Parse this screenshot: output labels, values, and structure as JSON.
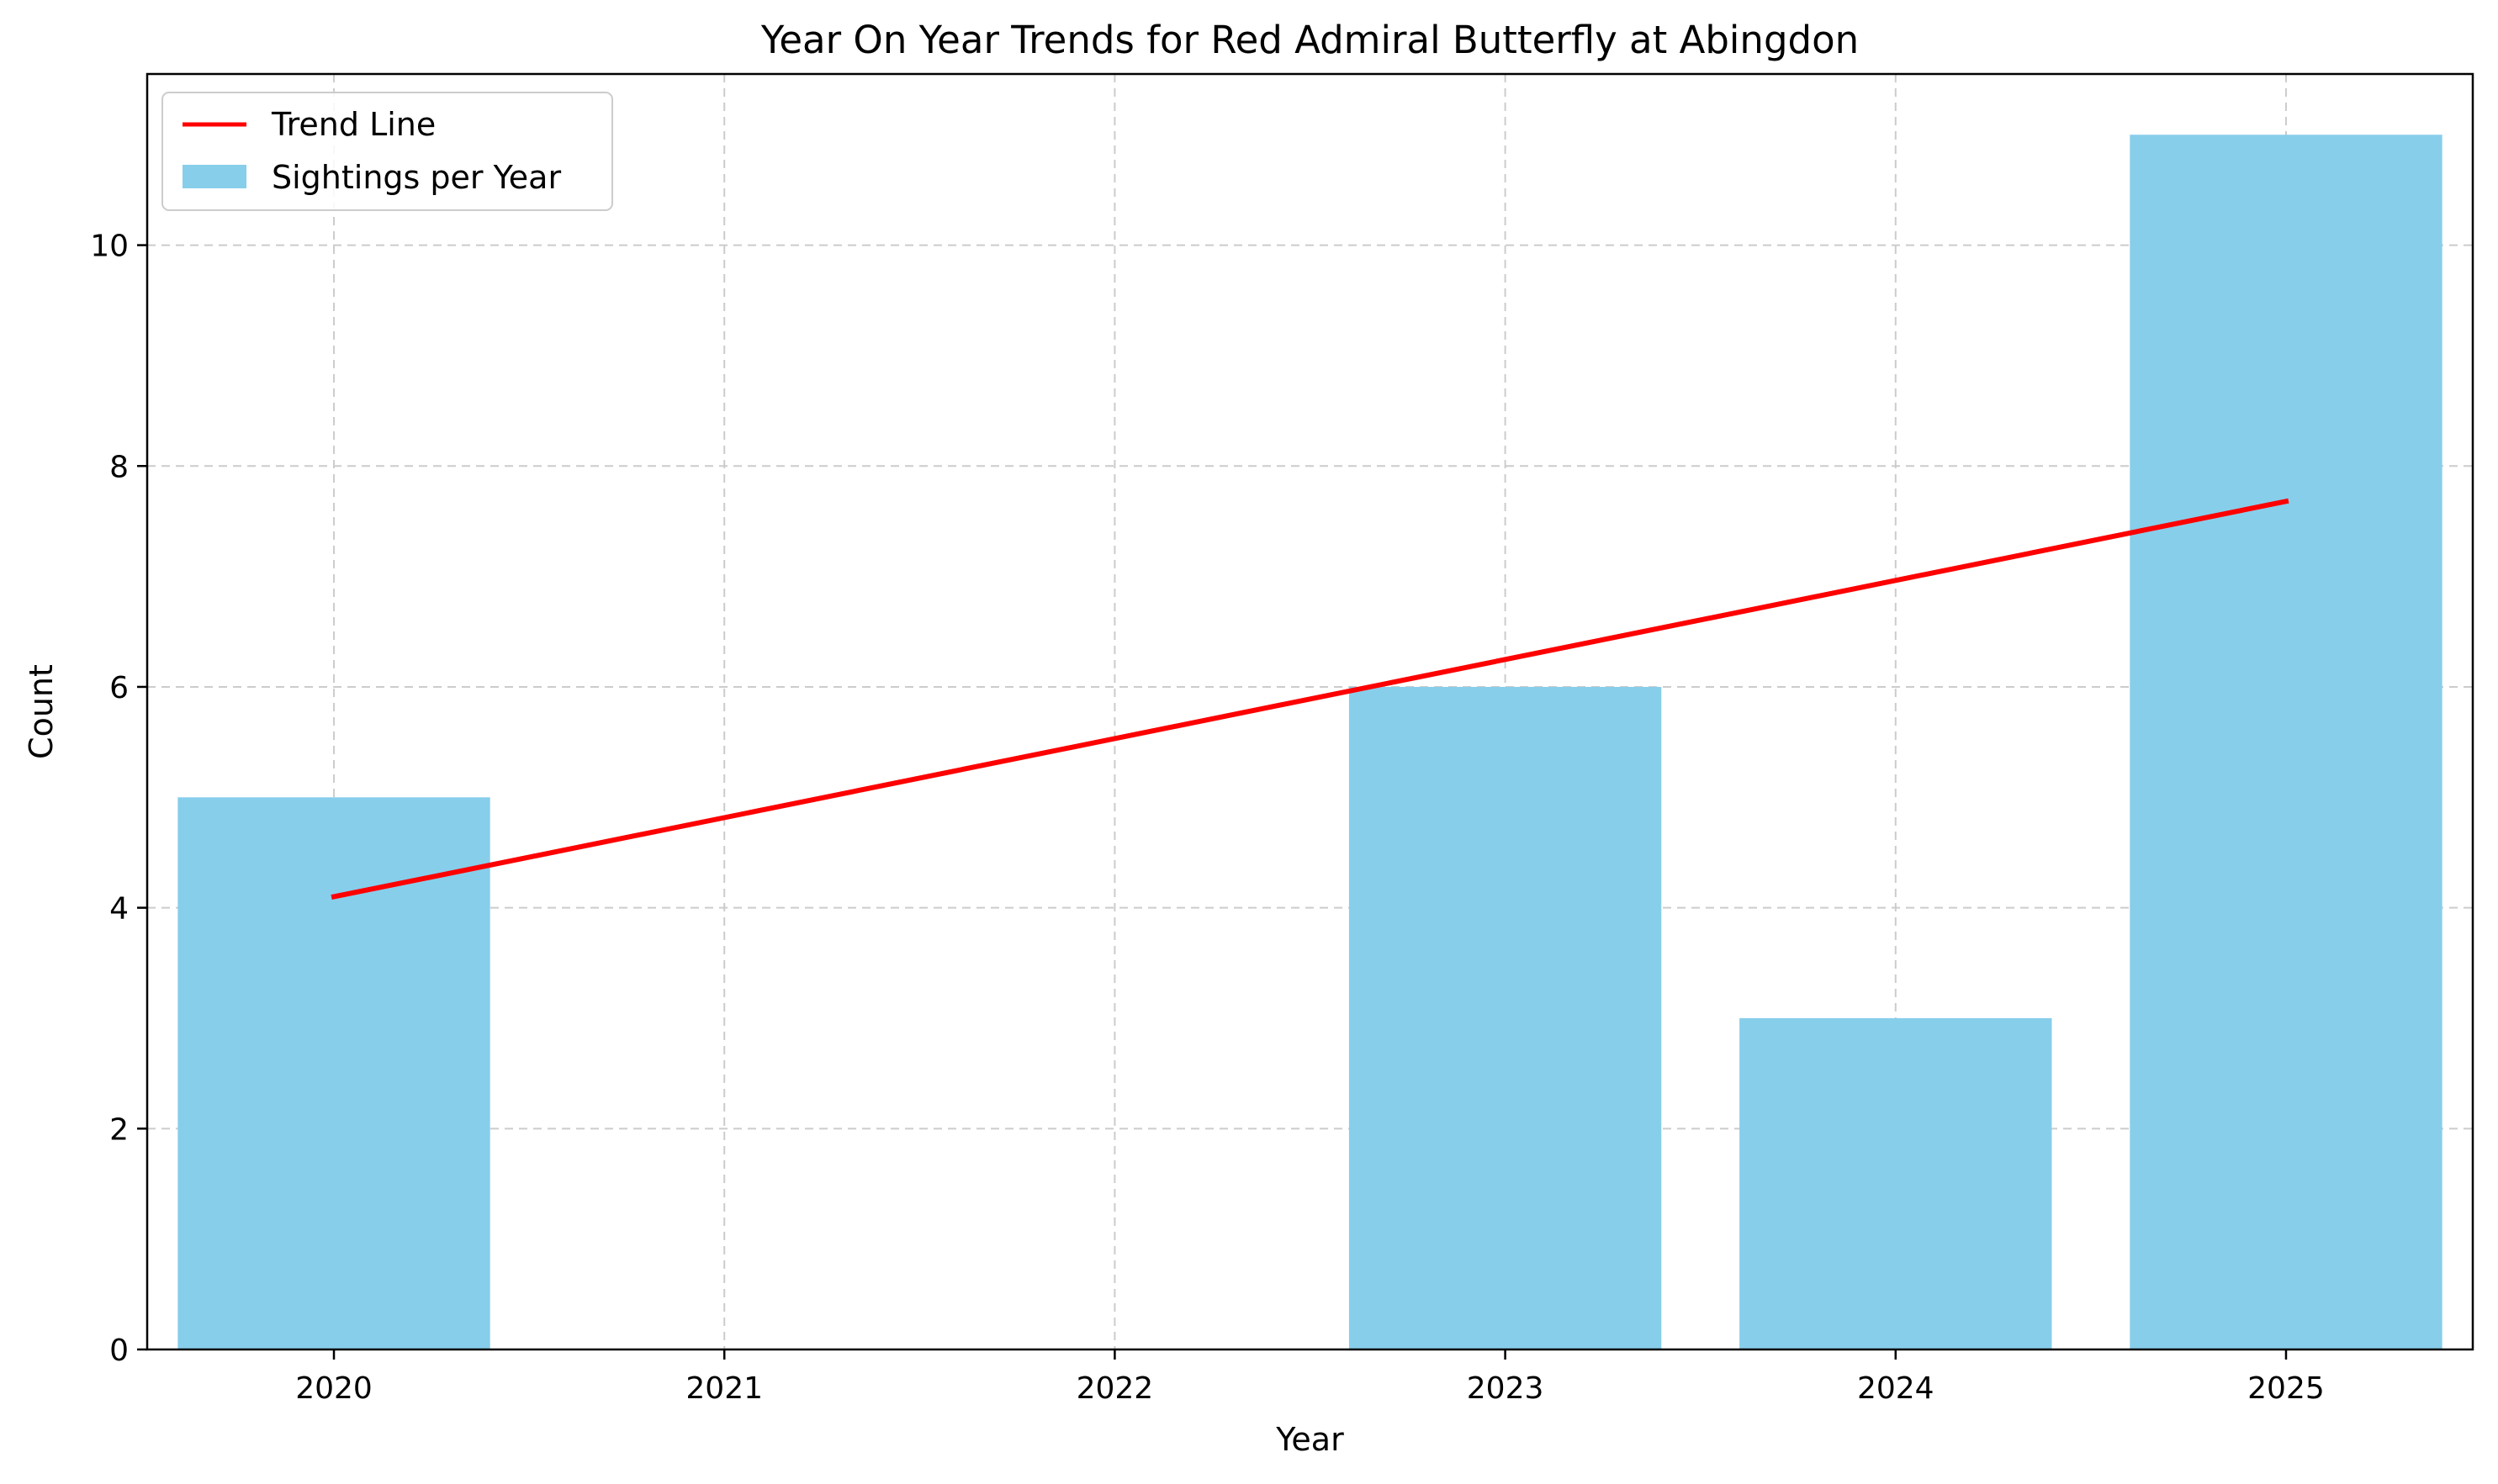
{
  "chart_data": {
    "type": "bar",
    "title": "Year On Year Trends for Red Admiral Butterfly at Abingdon",
    "xlabel": "Year",
    "ylabel": "Count",
    "categories": [
      "2020",
      "2021",
      "2022",
      "2023",
      "2024",
      "2025"
    ],
    "series": [
      {
        "name": "Sightings per Year",
        "type": "bar",
        "values": [
          5,
          0,
          0,
          6,
          3,
          11
        ],
        "color": "#87CEEB"
      },
      {
        "name": "Trend Line",
        "type": "line",
        "x": [
          "2020",
          "2025"
        ],
        "values": [
          4.1,
          7.68
        ],
        "color": "#FF0000"
      }
    ],
    "ylim": [
      0,
      11.55
    ],
    "yticks": [
      "0",
      "2",
      "4",
      "6",
      "8",
      "10"
    ],
    "grid": true,
    "legend_position": "top-left",
    "legend": [
      "Trend Line",
      "Sightings per Year"
    ]
  }
}
